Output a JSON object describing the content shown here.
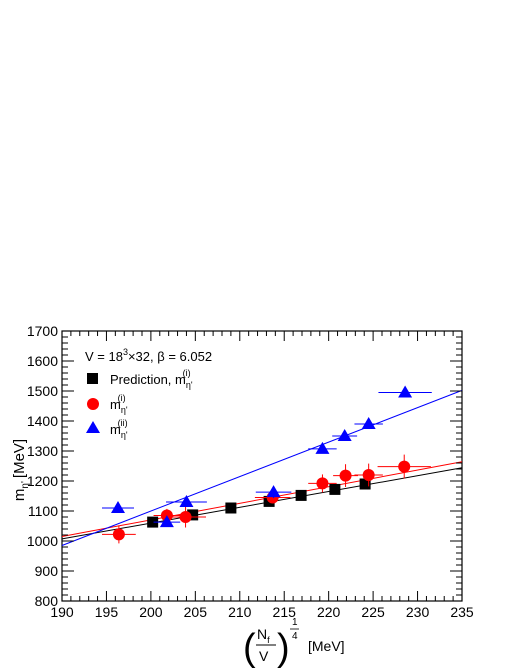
{
  "chart_data": {
    "type": "scatter",
    "xlim": [
      190,
      235
    ],
    "ylim": [
      800,
      1700
    ],
    "x_ticks": [
      190,
      195,
      200,
      205,
      210,
      215,
      220,
      225,
      230,
      235
    ],
    "y_ticks": [
      800,
      900,
      1000,
      1100,
      1200,
      1300,
      1400,
      1500,
      1600,
      1700
    ],
    "x_tick_labels": [
      "190",
      "195",
      "200",
      "205",
      "210",
      "215",
      "220",
      "225",
      "230",
      "235"
    ],
    "y_tick_labels": [
      "800",
      "900",
      "1000",
      "1100",
      "1200",
      "1300",
      "1400",
      "1500",
      "1600",
      "1700"
    ],
    "xlabel": {
      "frac_numerator": "N",
      "frac_numerator_sub": "f",
      "frac_denominator": "V",
      "exponent_numerator": "1",
      "exponent_denominator": "4",
      "unit": "[MeV]"
    },
    "ylabel": {
      "main": "m",
      "subscript": "η'",
      "unit": "[MeV]"
    },
    "annotation": {
      "prefix": "V = 18",
      "sup": "3",
      "suffix": "×32, β = 6.052"
    },
    "legend": {
      "placement": "top-left",
      "entries": [
        {
          "series": "prediction",
          "text": "Prediction, m",
          "sub": "η'",
          "sup": "(i)"
        },
        {
          "series": "m_i",
          "text": "m",
          "sub": "η'",
          "sup": "(i)"
        },
        {
          "series": "m_ii",
          "text": "m",
          "sub": "η'",
          "sup": "(ii)"
        }
      ]
    },
    "series": [
      {
        "id": "prediction",
        "marker": "square",
        "color": "#000000",
        "points": [
          {
            "x": 200.2,
            "y": 1063
          },
          {
            "x": 204.7,
            "y": 1087
          },
          {
            "x": 209.0,
            "y": 1110
          },
          {
            "x": 213.3,
            "y": 1132
          },
          {
            "x": 216.9,
            "y": 1152
          },
          {
            "x": 220.7,
            "y": 1172
          },
          {
            "x": 224.1,
            "y": 1190
          }
        ],
        "fit": {
          "x": [
            190,
            235
          ],
          "y": [
            1007,
            1244
          ]
        }
      },
      {
        "id": "m_i",
        "marker": "circle",
        "color": "#ff0000",
        "points": [
          {
            "x": 196.4,
            "y": 1022,
            "xerr": 1.9,
            "yerr": 30
          },
          {
            "x": 201.8,
            "y": 1085,
            "xerr": 1.5,
            "yerr": 22
          },
          {
            "x": 203.9,
            "y": 1080,
            "xerr": 2.3,
            "yerr": 35
          },
          {
            "x": 213.7,
            "y": 1145,
            "xerr": 2.0,
            "yerr": 20
          },
          {
            "x": 219.3,
            "y": 1192,
            "xerr": 1.6,
            "yerr": 30
          },
          {
            "x": 221.9,
            "y": 1218,
            "xerr": 1.4,
            "yerr": 38
          },
          {
            "x": 224.5,
            "y": 1220,
            "xerr": 1.6,
            "yerr": 38
          },
          {
            "x": 228.5,
            "y": 1248,
            "xerr": 3.0,
            "yerr": 40
          }
        ],
        "fit": {
          "x": [
            190,
            235
          ],
          "y": [
            1015,
            1264
          ]
        }
      },
      {
        "id": "m_ii",
        "marker": "triangle",
        "color": "#0000ff",
        "points": [
          {
            "x": 196.3,
            "y": 1110,
            "xerr": 1.8,
            "yerr": 10
          },
          {
            "x": 201.8,
            "y": 1063,
            "xerr": 1.5,
            "yerr": 10
          },
          {
            "x": 204.0,
            "y": 1130,
            "xerr": 2.3,
            "yerr": 10
          },
          {
            "x": 213.8,
            "y": 1163,
            "xerr": 2.0,
            "yerr": 20
          },
          {
            "x": 219.3,
            "y": 1307,
            "xerr": 1.6,
            "yerr": 15
          },
          {
            "x": 221.8,
            "y": 1350,
            "xerr": 1.4,
            "yerr": 15
          },
          {
            "x": 224.5,
            "y": 1390,
            "xerr": 1.6,
            "yerr": 15
          },
          {
            "x": 228.6,
            "y": 1495,
            "xerr": 3.0,
            "yerr": 10
          }
        ],
        "fit": {
          "x": [
            190,
            235
          ],
          "y": [
            985,
            1502
          ]
        }
      }
    ]
  }
}
